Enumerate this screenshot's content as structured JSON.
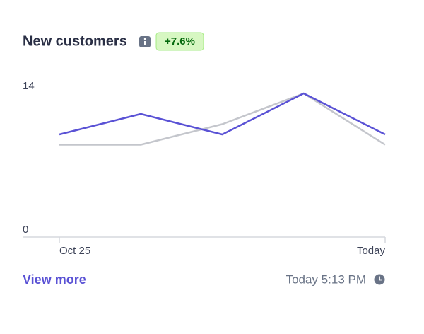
{
  "chart_data": {
    "type": "line",
    "title": "New customers",
    "badge": "+7.6%",
    "categories": [
      "Oct 25",
      null,
      null,
      null,
      "Today"
    ],
    "series": [
      {
        "color": "#c4c6cc",
        "values": [
          9,
          9,
          11,
          14,
          9
        ]
      },
      {
        "color": "#5a52d5",
        "values": [
          10,
          12,
          10,
          14,
          10
        ]
      }
    ],
    "ylim": [
      0,
      14
    ],
    "yticks": [
      0,
      14
    ],
    "link": "View more",
    "timestamp": "Today 5:13 PM"
  }
}
